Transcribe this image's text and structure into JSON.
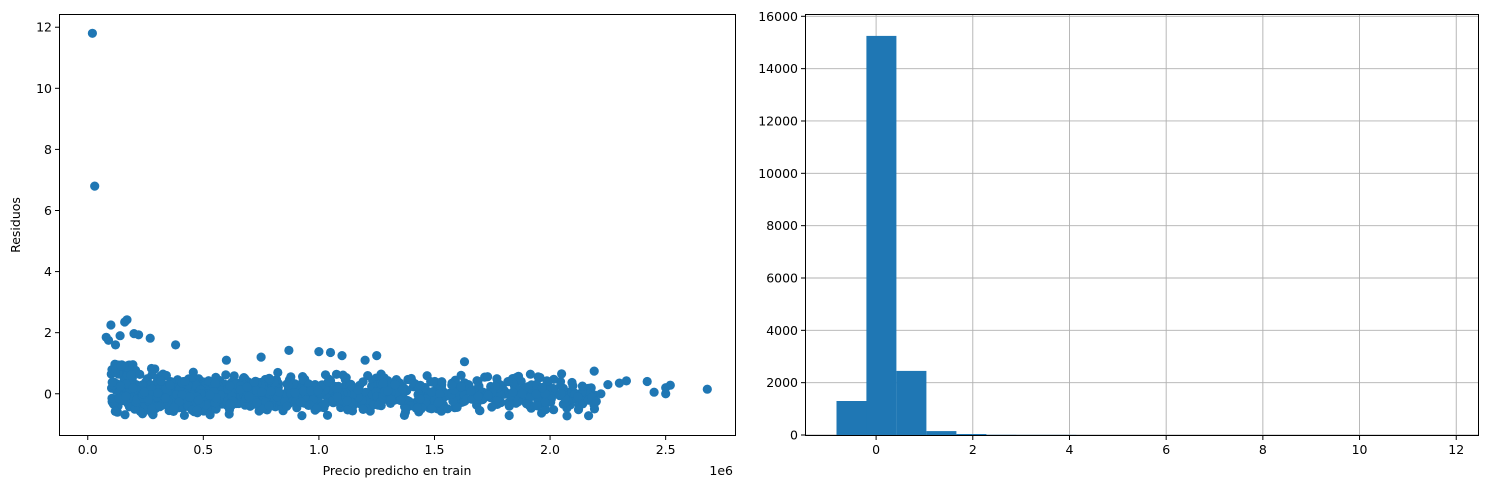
{
  "chart_data": [
    {
      "type": "scatter",
      "xlabel": "Precio predicho en train",
      "ylabel": "Residuos",
      "x_offset_label": "1e6",
      "x_tick_labels": [
        "0.0",
        "0.5",
        "1.0",
        "1.5",
        "2.0",
        "2.5"
      ],
      "y_tick_labels": [
        "0",
        "2",
        "4",
        "6",
        "8",
        "10",
        "12"
      ],
      "x_ticks": [
        0.0,
        0.5,
        1.0,
        1.5,
        2.0,
        2.5
      ],
      "y_ticks": [
        0,
        2,
        4,
        6,
        8,
        10,
        12
      ],
      "xlim": [
        -0.12,
        2.8
      ],
      "ylim": [
        -1.35,
        12.4
      ],
      "grid": false,
      "color": "#1f77b4",
      "outliers": [
        {
          "x": 0.02,
          "y": 11.8
        },
        {
          "x": 0.03,
          "y": 6.8
        },
        {
          "x": 0.17,
          "y": 2.42
        },
        {
          "x": 0.16,
          "y": 2.35
        },
        {
          "x": 0.1,
          "y": 2.25
        },
        {
          "x": 0.2,
          "y": 1.97
        },
        {
          "x": 0.22,
          "y": 1.93
        },
        {
          "x": 0.27,
          "y": 1.82
        },
        {
          "x": 0.38,
          "y": 1.6
        },
        {
          "x": 0.87,
          "y": 1.42
        },
        {
          "x": 1.0,
          "y": 1.38
        },
        {
          "x": 1.05,
          "y": 1.35
        },
        {
          "x": 1.1,
          "y": 1.25
        },
        {
          "x": 1.25,
          "y": 1.25
        },
        {
          "x": 2.68,
          "y": 0.15
        },
        {
          "x": 2.52,
          "y": 0.28
        },
        {
          "x": 2.5,
          "y": 0.2
        },
        {
          "x": 2.45,
          "y": 0.05
        },
        {
          "x": 2.42,
          "y": 0.4
        },
        {
          "x": 2.5,
          "y": 0.0
        },
        {
          "x": 2.33,
          "y": 0.42
        },
        {
          "x": 2.3,
          "y": 0.35
        },
        {
          "x": 2.25,
          "y": 0.3
        },
        {
          "x": 2.2,
          "y": -0.25
        },
        {
          "x": 2.22,
          "y": 0.0
        },
        {
          "x": 2.12,
          "y": -0.1
        },
        {
          "x": 2.05,
          "y": 0.65
        },
        {
          "x": 2.14,
          "y": 0.25
        },
        {
          "x": 0.08,
          "y": 1.85
        },
        {
          "x": 0.09,
          "y": 1.75
        },
        {
          "x": 0.12,
          "y": 1.6
        },
        {
          "x": 0.14,
          "y": 1.9
        },
        {
          "x": 1.63,
          "y": 1.05
        },
        {
          "x": 1.2,
          "y": 1.1
        },
        {
          "x": 0.6,
          "y": 1.1
        },
        {
          "x": 0.75,
          "y": 1.2
        }
      ],
      "point_count_estimate": 1200
    },
    {
      "type": "histogram",
      "x_tick_labels": [
        "0",
        "2",
        "4",
        "6",
        "8",
        "10",
        "12"
      ],
      "y_tick_labels": [
        "0",
        "2000",
        "4000",
        "6000",
        "8000",
        "10000",
        "12000",
        "14000",
        "16000"
      ],
      "x_ticks": [
        0,
        2,
        4,
        6,
        8,
        10,
        12
      ],
      "y_ticks": [
        0,
        2000,
        4000,
        6000,
        8000,
        10000,
        12000,
        14000,
        16000
      ],
      "xlim": [
        -1.45,
        12.45
      ],
      "ylim": [
        0,
        16050
      ],
      "grid": true,
      "color": "#1f77b4",
      "bin_edges": [
        -0.82,
        -0.2,
        0.42,
        1.04,
        1.66,
        2.28,
        2.9,
        3.52,
        4.14,
        4.76,
        5.38,
        6.0,
        6.62,
        7.24,
        7.86,
        8.48,
        9.1,
        9.72,
        10.34,
        10.96,
        11.58,
        12.2
      ],
      "counts": [
        1300,
        15250,
        2450,
        150,
        40,
        8,
        3,
        2,
        1,
        1,
        1,
        1,
        0,
        0,
        0,
        0,
        0,
        0,
        0,
        0,
        1
      ]
    }
  ]
}
